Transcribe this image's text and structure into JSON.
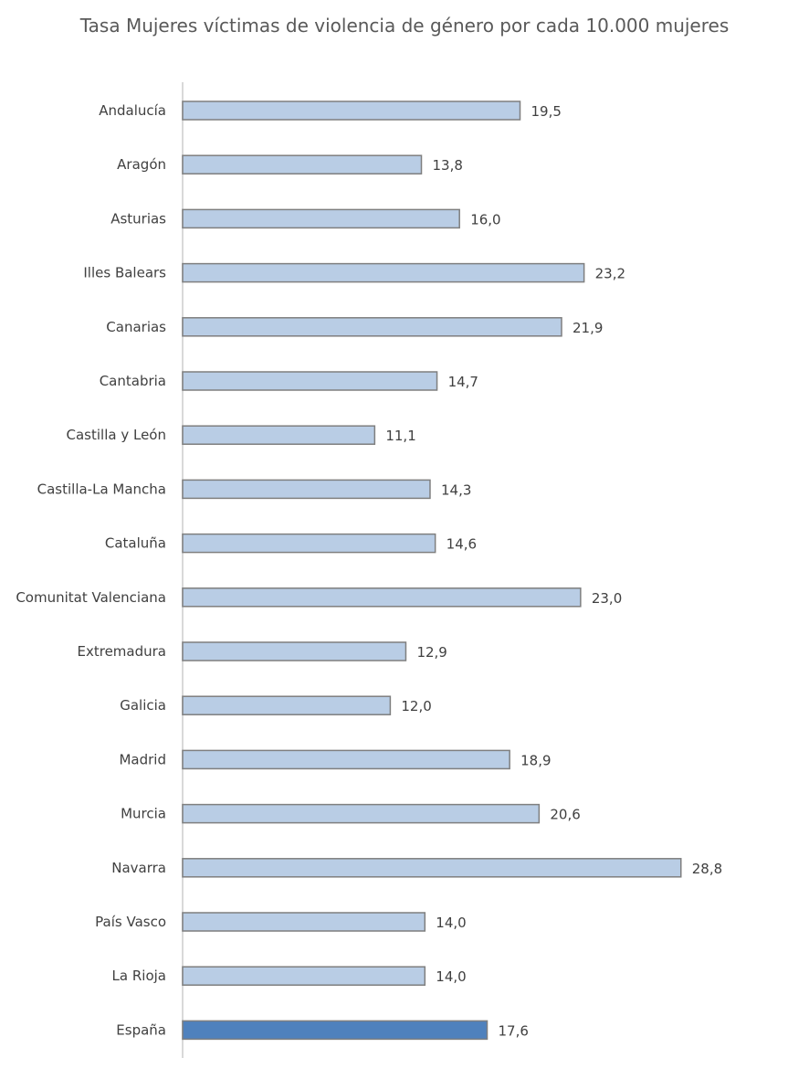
{
  "chart_data": {
    "type": "bar",
    "orientation": "horizontal",
    "title": "Tasa Mujeres víctimas de violencia de género por cada 10.000 mujeres",
    "categories": [
      "Andalucía",
      "Aragón",
      "Asturias",
      "Illes Balears",
      "Canarias",
      "Cantabria",
      "Castilla y León",
      "Castilla-La Mancha",
      "Cataluña",
      "Comunitat Valenciana",
      "Extremadura",
      "Galicia",
      "Madrid",
      "Murcia",
      "Navarra",
      "País Vasco",
      "La Rioja",
      "España"
    ],
    "values": [
      19.5,
      13.8,
      16.0,
      23.2,
      21.9,
      14.7,
      11.1,
      14.3,
      14.6,
      23.0,
      12.9,
      12.0,
      18.9,
      20.6,
      28.8,
      14.0,
      14.0,
      17.6
    ],
    "data_labels": [
      "19,5",
      "13,8",
      "16,0",
      "23,2",
      "21,9",
      "14,7",
      "11,1",
      "14,3",
      "14,6",
      "23,0",
      "12,9",
      "12,0",
      "18,9",
      "20,6",
      "28,8",
      "14,0",
      "14,0",
      "17,6"
    ],
    "xlim": [
      0,
      30
    ],
    "grid": false,
    "legend": "none",
    "colors": {
      "bar": "#B9CDE5",
      "bar_border": "#7F7F7F",
      "highlight": "#4F81BD",
      "highlight_category": "España",
      "axis": "#D9D9D9"
    }
  }
}
